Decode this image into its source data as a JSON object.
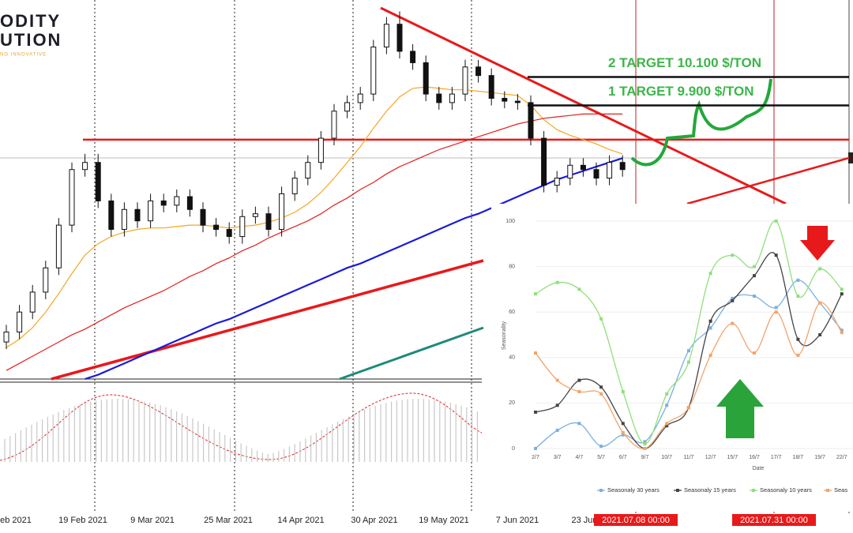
{
  "logo": {
    "line1": "ODITY",
    "line2": "UTION",
    "tagline": "NO INNOVATIVE"
  },
  "chart_data": [
    {
      "type": "candlestick",
      "x_labels": [
        "eb 2021",
        "19 Feb 2021",
        "9 Mar 2021",
        "25 Mar 2021",
        "14 Apr 2021",
        "30 Apr 2021",
        "19 May 2021",
        "7 Jun 2021",
        "23 Jun"
      ],
      "time_markers": [
        "2021.07.08 00:00",
        "2021.07.31 00:00"
      ],
      "ylim": [
        7980,
        10640
      ],
      "open": [
        8240,
        8310,
        8450,
        8590,
        8760,
        9060,
        9450,
        9500,
        9230,
        9030,
        9170,
        9090,
        9230,
        9200,
        9260,
        9170,
        9060,
        9030,
        8980,
        9120,
        9140,
        9030,
        9280,
        9390,
        9500,
        9670,
        9860,
        9920,
        9980,
        10310,
        10470,
        10280,
        10200,
        9980,
        9920,
        9980,
        10170,
        10110,
        9950,
        9930,
        9920,
        9670,
        9340,
        9390,
        9480,
        9450,
        9390,
        9500
      ],
      "high": [
        8360,
        8500,
        8640,
        8810,
        9110,
        9500,
        9560,
        9560,
        9280,
        9220,
        9220,
        9280,
        9280,
        9310,
        9310,
        9220,
        9110,
        9080,
        9170,
        9190,
        9190,
        9330,
        9440,
        9550,
        9720,
        9910,
        9970,
        10030,
        10360,
        10520,
        10560,
        10330,
        10250,
        10030,
        10030,
        10220,
        10220,
        10160,
        10000,
        9980,
        9970,
        9720,
        9440,
        9530,
        9530,
        9500,
        9550,
        9550
      ],
      "low": [
        8190,
        8260,
        8400,
        8540,
        8710,
        9010,
        9400,
        9180,
        8980,
        8980,
        9040,
        9040,
        9150,
        9150,
        9120,
        9010,
        8980,
        8930,
        8930,
        9070,
        8980,
        8980,
        9230,
        9340,
        9450,
        9620,
        9810,
        9870,
        9930,
        10260,
        10230,
        10150,
        9930,
        9870,
        9870,
        9930,
        10060,
        9900,
        9880,
        9870,
        9620,
        9290,
        9290,
        9340,
        9400,
        9340,
        9340,
        9400
      ],
      "close": [
        8310,
        8450,
        8590,
        8760,
        9060,
        9450,
        9500,
        9230,
        9030,
        9170,
        9090,
        9230,
        9200,
        9260,
        9170,
        9060,
        9030,
        8980,
        9120,
        9140,
        9030,
        9280,
        9390,
        9500,
        9670,
        9860,
        9920,
        9980,
        10310,
        10470,
        10280,
        10200,
        9980,
        9920,
        9980,
        10170,
        10110,
        9950,
        9930,
        9920,
        9670,
        9340,
        9390,
        9480,
        9450,
        9390,
        9500,
        9450
      ],
      "moving_averages": [
        {
          "color": "#f5a623",
          "values": [
            8200,
            8260,
            8340,
            8450,
            8580,
            8720,
            8850,
            8930,
            8980,
            9010,
            9030,
            9040,
            9040,
            9050,
            9060,
            9060,
            9050,
            9040,
            9050,
            9060,
            9080,
            9110,
            9150,
            9210,
            9290,
            9390,
            9500,
            9610,
            9740,
            9860,
            9960,
            10020,
            10030,
            10020,
            10010,
            10010,
            10000,
            9990,
            9980,
            9970,
            9900,
            9800,
            9730,
            9690,
            9660,
            9630,
            9590,
            9560
          ]
        },
        {
          "color": "#e02020",
          "values": [
            8040,
            8090,
            8140,
            8190,
            8240,
            8290,
            8330,
            8380,
            8430,
            8480,
            8520,
            8560,
            8600,
            8650,
            8700,
            8740,
            8790,
            8830,
            8880,
            8920,
            8970,
            9010,
            9050,
            9090,
            9140,
            9200,
            9250,
            9310,
            9360,
            9420,
            9470,
            9510,
            9550,
            9590,
            9620,
            9650,
            9680,
            9710,
            9740,
            9770,
            9790,
            9810,
            9820,
            9830,
            9840,
            9840,
            9840,
            9840
          ]
        },
        {
          "color": "#1a1adb",
          "values": [
            null,
            null,
            null,
            null,
            null,
            null,
            7980,
            8010,
            8050,
            8090,
            8130,
            8170,
            8210,
            8250,
            8290,
            8330,
            8370,
            8400,
            8440,
            8480,
            8520,
            8560,
            8600,
            8640,
            8680,
            8720,
            8760,
            8790,
            8830,
            8870,
            8910,
            8950,
            8990,
            9030,
            9070,
            9110,
            9140,
            9180,
            9220,
            9260,
            9300,
            9340,
            9380,
            9410,
            9440,
            9470,
            9500,
            9530
          ]
        }
      ],
      "levels": [
        {
          "value": 9660,
          "color": "#e8191a"
        }
      ],
      "targets": [
        {
          "value": 9900,
          "label": "1 TARGET 9.900 $/TON"
        },
        {
          "value": 10100,
          "label": "2 TARGET 10.100 $/TON"
        }
      ]
    },
    {
      "type": "line",
      "x_label": "Date",
      "y_label": "Seasonality",
      "categories": [
        "2/7",
        "3/7",
        "4/7",
        "5/7",
        "6/7",
        "9/7",
        "10/7",
        "11/7",
        "12/7",
        "15/7",
        "16/7",
        "17/7",
        "18/7",
        "19/7",
        "22/7"
      ],
      "ylim": [
        0,
        100
      ],
      "yticks": [
        0,
        20,
        40,
        60,
        80,
        100
      ],
      "grid": true,
      "series": [
        {
          "name": "Seasonaly 30 years",
          "color": "#7ab0e0",
          "values": [
            0,
            8,
            11,
            1,
            6,
            3,
            19,
            43,
            53,
            66,
            67,
            62,
            74,
            64,
            52
          ]
        },
        {
          "name": "Seasonaly 15 years",
          "color": "#444444",
          "values": [
            16,
            19,
            30,
            27,
            11,
            0,
            10,
            18,
            56,
            65,
            76,
            85,
            48,
            50,
            68
          ]
        },
        {
          "name": "Seasonaly 10 years",
          "color": "#8fe07a",
          "values": [
            68,
            73,
            70,
            57,
            25,
            2,
            24,
            38,
            77,
            85,
            80,
            100,
            67,
            79,
            70
          ]
        },
        {
          "name": "Seas",
          "color": "#f4a36a",
          "values": [
            42,
            30,
            25,
            24,
            7,
            0,
            11,
            18,
            41,
            55,
            42,
            60,
            41,
            64,
            51
          ]
        }
      ]
    }
  ]
}
